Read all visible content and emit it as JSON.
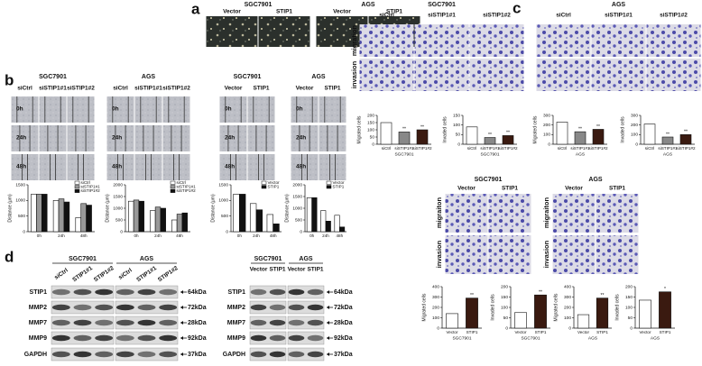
{
  "panels": {
    "a": {
      "label": "a",
      "groups": [
        {
          "title": "SGC7901",
          "columns": [
            "Vector",
            "STIP1"
          ]
        },
        {
          "title": "AGS",
          "columns": [
            "Vector",
            "STIP1"
          ]
        }
      ]
    },
    "b": {
      "label": "b",
      "rows": [
        "0h",
        "24h",
        "48h"
      ],
      "groups": [
        {
          "title": "SGC7901",
          "columns": [
            "siCtrl",
            "siSTIP1#1",
            "siSTIP1#2"
          ]
        },
        {
          "title": "AGS",
          "columns": [
            "siCtrl",
            "siSTIP1#1",
            "siSTIP1#2"
          ]
        },
        {
          "title": "SGC7901",
          "columns": [
            "Vector",
            "STIP1"
          ]
        },
        {
          "title": "AGS",
          "columns": [
            "Vector",
            "STIP1"
          ]
        }
      ]
    },
    "c": {
      "label": "c",
      "rows": [
        "migration",
        "invasion"
      ],
      "groups": [
        {
          "title": "SGC7901",
          "columns": [
            "siCtrl",
            "siSTIP1#1",
            "siSTIP1#2"
          ]
        },
        {
          "title": "AGS",
          "columns": [
            "siCtrl",
            "siSTIP1#1",
            "siSTIP1#2"
          ]
        }
      ]
    },
    "c2": {
      "rows": [
        "migraiton",
        "invasion"
      ],
      "groups": [
        {
          "title": "SGC7901",
          "columns": [
            "Vector",
            "STIP1"
          ]
        },
        {
          "title": "AGS",
          "columns": [
            "Vector",
            "STIP1"
          ]
        }
      ]
    },
    "d": {
      "label": "d",
      "blots": [
        {
          "groups": [
            {
              "title": "SGC7901",
              "lanes": [
                "siCtrl",
                "STIP1#1",
                "STIP1#2"
              ]
            },
            {
              "title": "AGS",
              "lanes": [
                "siCtrl",
                "STIP1#1",
                "STIP1#2"
              ]
            }
          ],
          "rows": [
            {
              "protein": "STIP1",
              "size": "64kDa"
            },
            {
              "protein": "MMP2",
              "size": "72kDa"
            },
            {
              "protein": "MMP7",
              "size": "28kDa"
            },
            {
              "protein": "MMP9",
              "size": "92kDa"
            },
            {
              "protein": "GAPDH",
              "size": "37kDa"
            }
          ]
        },
        {
          "groups": [
            {
              "title": "SGC7901",
              "lanes": [
                "Vector",
                "STIP1"
              ]
            },
            {
              "title": "AGS",
              "lanes": [
                "Vector",
                "STIP1"
              ]
            }
          ],
          "rows": [
            {
              "protein": "STIP1",
              "size": "64kDa"
            },
            {
              "protein": "MMP2",
              "size": "72kDa"
            },
            {
              "protein": "MMP7",
              "size": "28kDa"
            },
            {
              "protein": "MMP9",
              "size": "92kDa"
            },
            {
              "protein": "GAPDH",
              "size": "37kDa"
            }
          ]
        }
      ]
    }
  },
  "chart_data": [
    {
      "type": "bar",
      "ylabel": "Distance (μm)",
      "categories": [
        "0h",
        "24h",
        "48h"
      ],
      "ylim": [
        0,
        1500
      ],
      "yticks": [
        0,
        500,
        1000,
        1500
      ],
      "legend": "upper right",
      "series": [
        {
          "name": "siCtrl",
          "color": "#ffffff",
          "values": [
            1200,
            1000,
            450
          ]
        },
        {
          "name": "siSTIP1#1",
          "color": "#999999",
          "values": [
            1200,
            1050,
            900
          ]
        },
        {
          "name": "siSTIP1#2",
          "color": "#111111",
          "values": [
            1200,
            950,
            850
          ]
        }
      ]
    },
    {
      "type": "bar",
      "ylabel": "Distance (μm)",
      "categories": [
        "0h",
        "24h",
        "48h"
      ],
      "ylim": [
        0,
        2000
      ],
      "yticks": [
        0,
        500,
        1000,
        1500,
        2000
      ],
      "legend": "upper right",
      "series": [
        {
          "name": "siCtrl",
          "color": "#ffffff",
          "values": [
            1300,
            900,
            500
          ]
        },
        {
          "name": "siSTIP1#1",
          "color": "#999999",
          "values": [
            1350,
            1050,
            750
          ]
        },
        {
          "name": "siSTIP1#2",
          "color": "#111111",
          "values": [
            1300,
            1000,
            800
          ]
        }
      ]
    },
    {
      "type": "bar",
      "ylabel": "Distance (μm)",
      "categories": [
        "0h",
        "24h",
        "48h"
      ],
      "ylim": [
        0,
        1500
      ],
      "yticks": [
        0,
        500,
        1000,
        1500
      ],
      "legend": "upper right",
      "series": [
        {
          "name": "Vector",
          "color": "#ffffff",
          "values": [
            1200,
            900,
            550
          ]
        },
        {
          "name": "STIP1",
          "color": "#111111",
          "values": [
            1200,
            700,
            250
          ]
        }
      ]
    },
    {
      "type": "bar",
      "ylabel": "Distance (μm)",
      "categories": [
        "0h",
        "24h",
        "48h"
      ],
      "ylim": [
        0,
        2000
      ],
      "yticks": [
        0,
        500,
        1000,
        1500,
        2000
      ],
      "legend": "upper right",
      "series": [
        {
          "name": "Vector",
          "color": "#ffffff",
          "values": [
            1450,
            900,
            700
          ]
        },
        {
          "name": "STIP1",
          "color": "#111111",
          "values": [
            1450,
            450,
            200
          ]
        }
      ]
    },
    {
      "type": "bar",
      "ylabel": "Migrated cells",
      "xlabel": "SGC7901",
      "categories": [
        "siCtrl",
        "siSTIP1#1",
        "siSTIP1#2"
      ],
      "values": [
        150,
        85,
        100
      ],
      "colors": [
        "#ffffff",
        "#888888",
        "#3a1a10"
      ],
      "significance": [
        null,
        "**",
        "**"
      ],
      "ylim": [
        0,
        200
      ],
      "yticks": [
        0,
        50,
        100,
        150,
        200
      ]
    },
    {
      "type": "bar",
      "ylabel": "Invaded cells",
      "xlabel": "SGC7901",
      "categories": [
        "siCtrl",
        "siSTIP1#1",
        "siSTIP1#2"
      ],
      "values": [
        90,
        35,
        45
      ],
      "colors": [
        "#ffffff",
        "#888888",
        "#3a1a10"
      ],
      "significance": [
        null,
        "**",
        "**"
      ],
      "ylim": [
        0,
        150
      ],
      "yticks": [
        0,
        50,
        100,
        150
      ]
    },
    {
      "type": "bar",
      "ylabel": "Migrated cells",
      "xlabel": "AGS",
      "categories": [
        "siCtrl",
        "siSTIP1#1",
        "siSTIP1#2"
      ],
      "values": [
        230,
        130,
        155
      ],
      "colors": [
        "#ffffff",
        "#888888",
        "#3a1a10"
      ],
      "significance": [
        null,
        "**",
        "**"
      ],
      "ylim": [
        0,
        300
      ],
      "yticks": [
        0,
        100,
        200,
        300
      ]
    },
    {
      "type": "bar",
      "ylabel": "Invaded cells",
      "xlabel": "AGS",
      "categories": [
        "siCtrl",
        "siSTIP1#1",
        "siSTIP1#2"
      ],
      "values": [
        210,
        75,
        100
      ],
      "colors": [
        "#ffffff",
        "#888888",
        "#3a1a10"
      ],
      "significance": [
        null,
        "**",
        "**"
      ],
      "ylim": [
        0,
        300
      ],
      "yticks": [
        0,
        100,
        200,
        300
      ]
    },
    {
      "type": "bar",
      "ylabel": "Migrated cells",
      "xlabel": "SGC7901",
      "categories": [
        "Vector",
        "STIP1"
      ],
      "values": [
        140,
        290
      ],
      "colors": [
        "#ffffff",
        "#3a1a10"
      ],
      "significance": [
        null,
        "**"
      ],
      "ylim": [
        0,
        400
      ],
      "yticks": [
        0,
        100,
        200,
        300,
        400
      ]
    },
    {
      "type": "bar",
      "ylabel": "Invaded cells",
      "xlabel": "SGC7901",
      "categories": [
        "Vector",
        "STIP1"
      ],
      "values": [
        75,
        160
      ],
      "colors": [
        "#ffffff",
        "#3a1a10"
      ],
      "significance": [
        null,
        "**"
      ],
      "ylim": [
        0,
        200
      ],
      "yticks": [
        0,
        50,
        100,
        150,
        200
      ]
    },
    {
      "type": "bar",
      "ylabel": "Migrated cells",
      "xlabel": "AGS",
      "categories": [
        "Vector",
        "STIP1"
      ],
      "values": [
        130,
        290
      ],
      "colors": [
        "#ffffff",
        "#3a1a10"
      ],
      "significance": [
        null,
        "**"
      ],
      "ylim": [
        0,
        400
      ],
      "yticks": [
        0,
        100,
        200,
        300,
        400
      ]
    },
    {
      "type": "bar",
      "ylabel": "Invaded cells",
      "xlabel": "AGS",
      "categories": [
        "Vector",
        "STIP1"
      ],
      "values": [
        135,
        175
      ],
      "colors": [
        "#ffffff",
        "#3a1a10"
      ],
      "significance": [
        null,
        "*"
      ],
      "ylim": [
        0,
        200
      ],
      "yticks": [
        0,
        50,
        100,
        150,
        200
      ]
    }
  ]
}
